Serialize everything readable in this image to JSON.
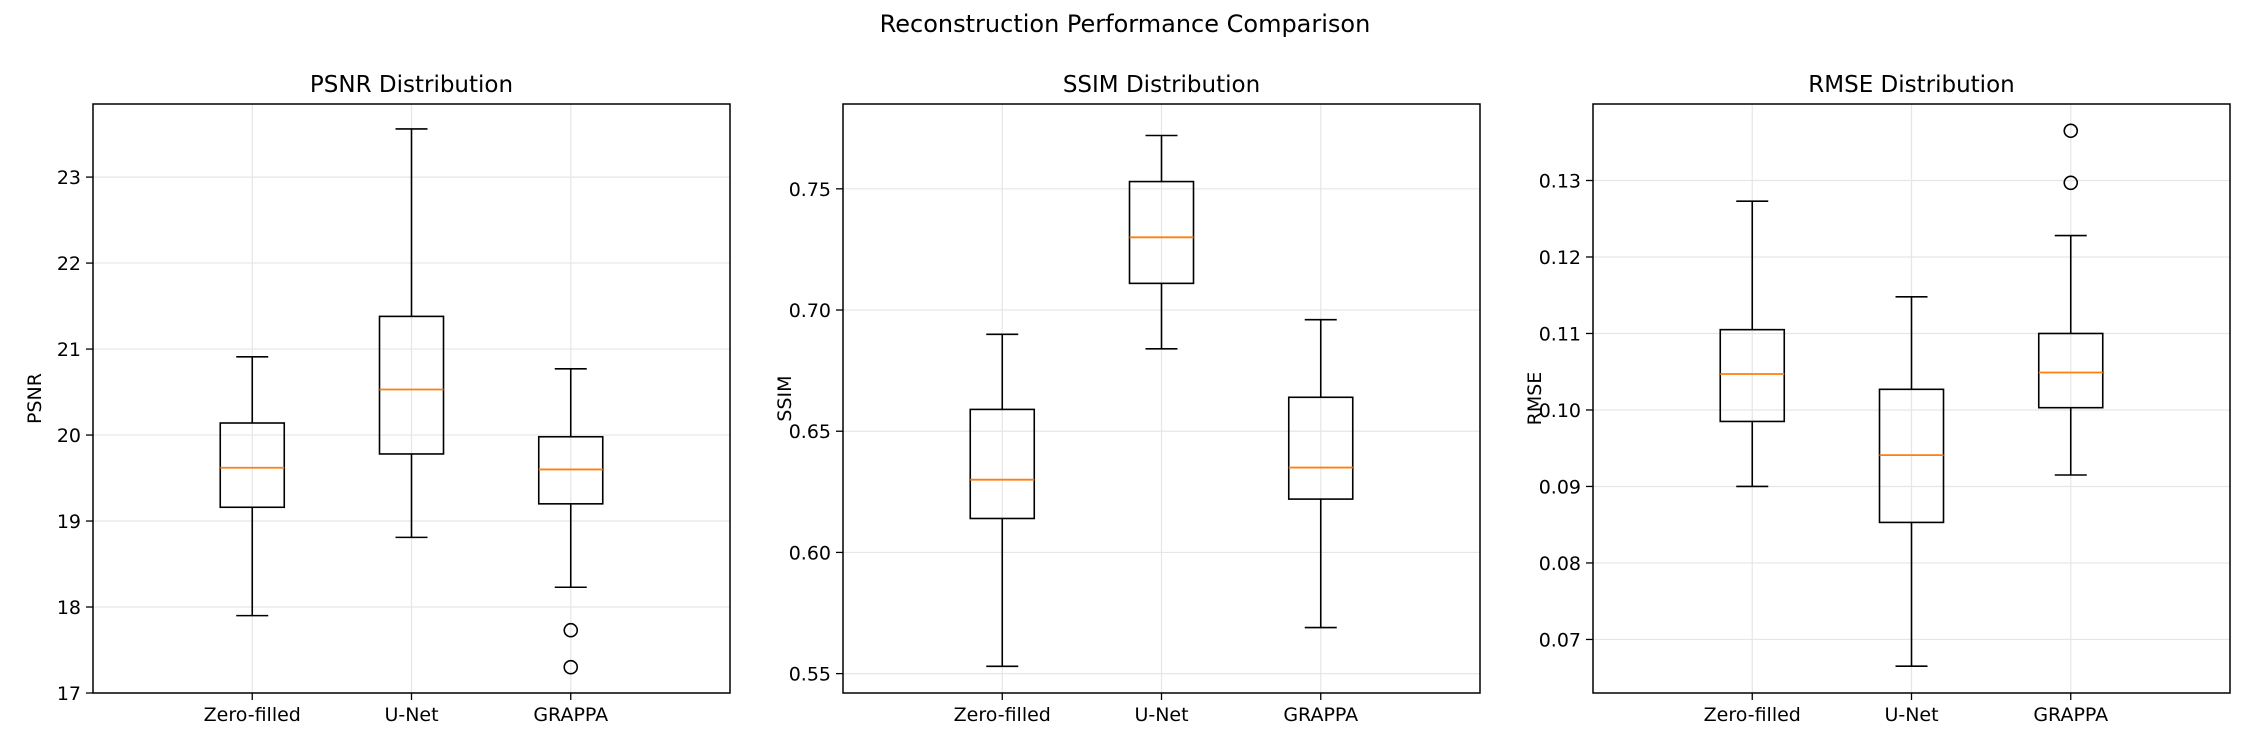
{
  "figure": {
    "title": "Reconstruction Performance Comparison"
  },
  "chart_data": [
    {
      "type": "box",
      "title": "PSNR Distribution",
      "xlabel": "",
      "ylabel": "PSNR",
      "ylim": [
        17.0,
        23.85
      ],
      "yticks": [
        17,
        18,
        19,
        20,
        21,
        22,
        23
      ],
      "tick_decimals": 0,
      "grid": true,
      "categories": [
        "Zero-filled",
        "U-Net",
        "GRAPPA"
      ],
      "boxes": [
        {
          "whisker_low": 17.9,
          "q1": 19.16,
          "median": 19.62,
          "q3": 20.14,
          "whisker_high": 20.91,
          "outliers": []
        },
        {
          "whisker_low": 18.81,
          "q1": 19.78,
          "median": 20.53,
          "q3": 21.38,
          "whisker_high": 23.56,
          "outliers": []
        },
        {
          "whisker_low": 18.23,
          "q1": 19.2,
          "median": 19.6,
          "q3": 19.98,
          "whisker_high": 20.77,
          "outliers": [
            17.73,
            17.3
          ]
        }
      ]
    },
    {
      "type": "box",
      "title": "SSIM Distribution",
      "xlabel": "",
      "ylabel": "SSIM",
      "ylim": [
        0.542,
        0.785
      ],
      "yticks": [
        0.55,
        0.6,
        0.65,
        0.7,
        0.75
      ],
      "tick_decimals": 2,
      "grid": true,
      "categories": [
        "Zero-filled",
        "U-Net",
        "GRAPPA"
      ],
      "boxes": [
        {
          "whisker_low": 0.553,
          "q1": 0.614,
          "median": 0.63,
          "q3": 0.659,
          "whisker_high": 0.69,
          "outliers": []
        },
        {
          "whisker_low": 0.684,
          "q1": 0.711,
          "median": 0.73,
          "q3": 0.753,
          "whisker_high": 0.772,
          "outliers": []
        },
        {
          "whisker_low": 0.569,
          "q1": 0.622,
          "median": 0.635,
          "q3": 0.664,
          "whisker_high": 0.696,
          "outliers": []
        }
      ]
    },
    {
      "type": "box",
      "title": "RMSE Distribution",
      "xlabel": "",
      "ylabel": "RMSE",
      "ylim": [
        0.063,
        0.14
      ],
      "yticks": [
        0.07,
        0.08,
        0.09,
        0.1,
        0.11,
        0.12,
        0.13
      ],
      "tick_decimals": 2,
      "grid": true,
      "categories": [
        "Zero-filled",
        "U-Net",
        "GRAPPA"
      ],
      "boxes": [
        {
          "whisker_low": 0.09,
          "q1": 0.0985,
          "median": 0.1047,
          "q3": 0.1105,
          "whisker_high": 0.1273,
          "outliers": []
        },
        {
          "whisker_low": 0.0665,
          "q1": 0.0853,
          "median": 0.0941,
          "q3": 0.1027,
          "whisker_high": 0.1148,
          "outliers": []
        },
        {
          "whisker_low": 0.0915,
          "q1": 0.1003,
          "median": 0.1049,
          "q3": 0.11,
          "whisker_high": 0.1228,
          "outliers": [
            0.1297,
            0.1365
          ]
        }
      ]
    }
  ],
  "colors": {
    "box": "#000000",
    "median": "#ff7f0e",
    "grid": "#e6e6e6"
  }
}
